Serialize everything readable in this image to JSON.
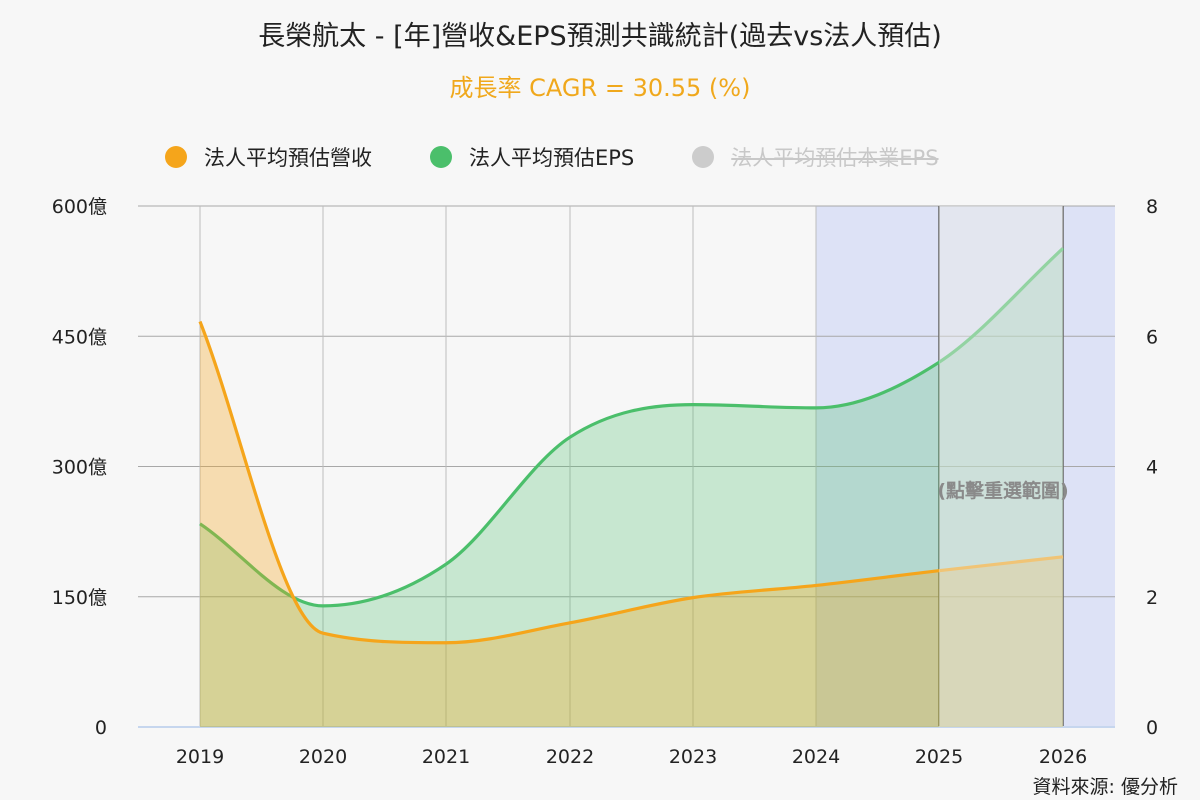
{
  "header": {
    "title": "長榮航太 - [年]營收&EPS預測共識統計(過去vs法人預估)",
    "subtitle": "成長率 CAGR = 30.55 (%)"
  },
  "legend": [
    {
      "label": "法人平均預估營收",
      "color": "#f5a51b",
      "visible": true
    },
    {
      "label": "法人平均預估EPS",
      "color": "#4bbf6b",
      "visible": true
    },
    {
      "label": "法人平均預估本業EPS",
      "color": "#cccccc",
      "visible": false
    }
  ],
  "reset_label": "(點擊重選範圍)",
  "source": "資料來源: 優分析",
  "chart_data": {
    "type": "area",
    "categories": [
      "2019",
      "2020",
      "2021",
      "2022",
      "2023",
      "2024",
      "2025",
      "2026"
    ],
    "left_axis": {
      "ticks": [
        "0",
        "150億",
        "300億",
        "450億",
        "600億"
      ],
      "min": 0,
      "max": 600
    },
    "right_axis": {
      "ticks": [
        "0",
        "2",
        "4",
        "6",
        "8"
      ],
      "min": 0,
      "max": 8
    },
    "series": [
      {
        "name": "法人平均預估營收",
        "axis": "left",
        "values": [
          467,
          108,
          97,
          120,
          149,
          163,
          180,
          196
        ],
        "color": "#f5a51b"
      },
      {
        "name": "法人平均預估EPS",
        "axis": "right",
        "values": [
          3.12,
          1.86,
          2.5,
          4.45,
          4.95,
          4.9,
          5.6,
          7.35
        ],
        "color": "#4bbf6b"
      }
    ],
    "forecast_from": "2024",
    "grid": true
  }
}
